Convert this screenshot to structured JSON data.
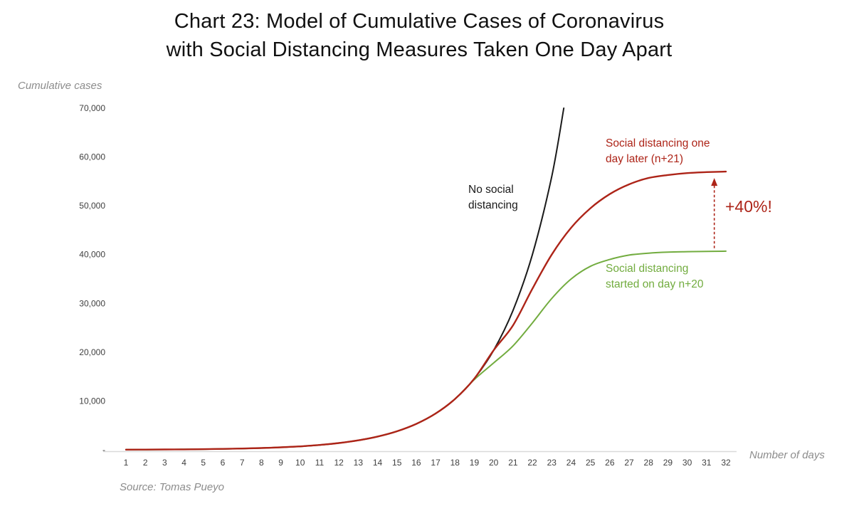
{
  "title": {
    "line1": "Chart 23: Model of Cumulative Cases of Coronavirus",
    "line2": "with Social Distancing Measures Taken One Day Apart"
  },
  "y_axis_title": "Cumulative cases",
  "x_axis_title": "Number of days",
  "source": "Source: Tomas Pueyo",
  "annotations": {
    "no_distancing": "No social\ndistancing",
    "red_series": "Social distancing one\nday later (n+21)",
    "green_series": "Social distancing\nstarted on day n+20",
    "delta": "+40%!"
  },
  "colors": {
    "black_line": "#1a1a1a",
    "red": "#ad2418",
    "green": "#72ac3f",
    "axis_line": "#d9d9d9",
    "tick_text": "#404040",
    "muted_text": "#8c8c8c"
  },
  "chart_data": {
    "type": "line",
    "title": "Chart 23: Model of Cumulative Cases of Coronavirus with Social Distancing Measures Taken One Day Apart",
    "xlabel": "Number of days",
    "ylabel": "Cumulative cases",
    "ylim": [
      0,
      70000
    ],
    "grid": false,
    "legend_position": "inline-annotations",
    "x": [
      1,
      2,
      3,
      4,
      5,
      6,
      7,
      8,
      9,
      10,
      11,
      12,
      13,
      14,
      15,
      16,
      17,
      18,
      19,
      20,
      21,
      22,
      23,
      24,
      25,
      26,
      27,
      28,
      29,
      30,
      31,
      32
    ],
    "yticks": [
      {
        "value": 70000,
        "label": "70,000"
      },
      {
        "value": 60000,
        "label": "60,000"
      },
      {
        "value": 50000,
        "label": "50,000"
      },
      {
        "value": 40000,
        "label": "40,000"
      },
      {
        "value": 30000,
        "label": "30,000"
      },
      {
        "value": 20000,
        "label": "20,000"
      },
      {
        "value": 10000,
        "label": "10,000"
      },
      {
        "value": 0,
        "label": "-"
      }
    ],
    "series": [
      {
        "id": "no-social-distancing",
        "name": "No social distancing",
        "color": "#1a1a1a",
        "note": "exponential growth, exits top of chart at ~70,000 near day 23.6",
        "values": [
          34,
          48,
          67,
          94,
          131,
          184,
          257,
          360,
          504,
          706,
          988,
          1383,
          1936,
          2711,
          3795,
          5313,
          7438,
          10413,
          14578,
          20409,
          28573,
          40002,
          56003,
          78404
        ]
      },
      {
        "id": "distancing-day-n20",
        "name": "Social distancing started on day n+20",
        "color": "#72ac3f",
        "note": "flattens to ~41,000 cases",
        "values": [
          34,
          48,
          67,
          94,
          131,
          184,
          257,
          360,
          504,
          706,
          988,
          1383,
          1936,
          2711,
          3795,
          5313,
          7438,
          10413,
          14400,
          17800,
          21300,
          26000,
          31000,
          35000,
          37600,
          39000,
          39900,
          40300,
          40500,
          40600,
          40650,
          40700
        ]
      },
      {
        "id": "distancing-day-n21",
        "name": "Social distancing one day later (n+21)",
        "color": "#ad2418",
        "note": "flattens to ~57,000 cases, +40% vs day n+20",
        "values": [
          34,
          48,
          67,
          94,
          131,
          184,
          257,
          360,
          504,
          706,
          988,
          1383,
          1936,
          2711,
          3795,
          5313,
          7438,
          10413,
          14578,
          20409,
          25500,
          33000,
          40000,
          45500,
          49500,
          52400,
          54400,
          55700,
          56300,
          56700,
          56900,
          57000
        ]
      }
    ],
    "annotation_arrow": {
      "x_day": 31.4,
      "from_value": 41300,
      "to_value": 55700,
      "label": "+40%!",
      "style": "dashed-red-vertical-arrow-up"
    }
  }
}
